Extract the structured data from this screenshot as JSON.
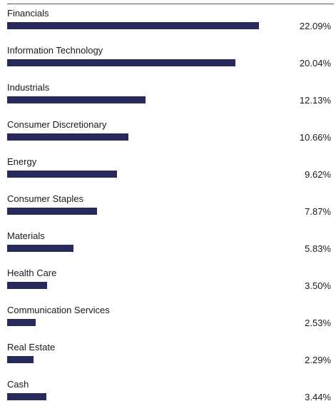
{
  "chart_data": {
    "type": "bar",
    "orientation": "horizontal",
    "bar_color": "#26295a",
    "rule_color": "#555555",
    "categories": [
      "Financials",
      "Information Technology",
      "Industrials",
      "Consumer Discretionary",
      "Energy",
      "Consumer Staples",
      "Materials",
      "Health Care",
      "Communication Services",
      "Real Estate",
      "Cash"
    ],
    "values": [
      22.09,
      20.04,
      12.13,
      10.66,
      9.62,
      7.87,
      5.83,
      3.5,
      2.53,
      2.29,
      3.44
    ],
    "value_labels": [
      "22.09%",
      "20.04%",
      "12.13%",
      "10.66%",
      "9.62%",
      "7.87%",
      "5.83%",
      "3.50%",
      "2.53%",
      "2.29%",
      "3.44%"
    ]
  }
}
